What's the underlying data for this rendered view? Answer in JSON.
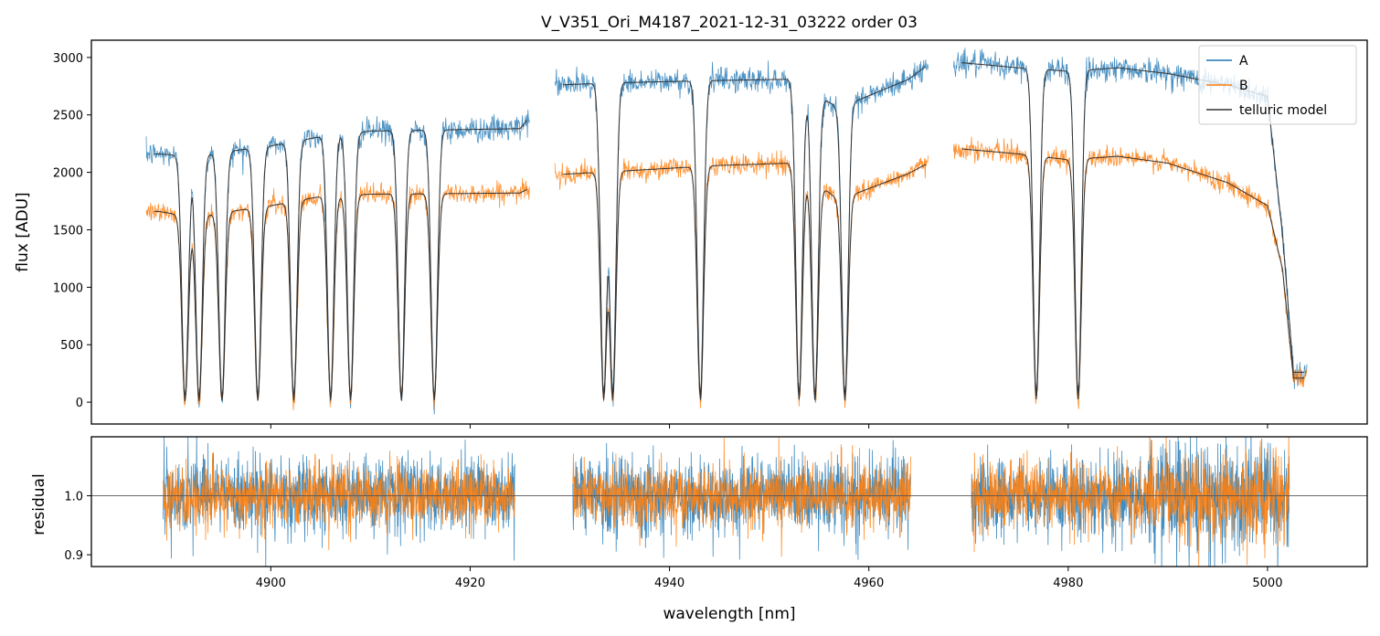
{
  "chart_data": [
    {
      "type": "line",
      "title": "V_V351_Ori_M4187_2021-12-31_03222  order 03",
      "xlabel": "",
      "ylabel": "flux [ADU]",
      "xlim": [
        4882,
        5010
      ],
      "ylim": [
        -190,
        3150
      ],
      "yticks": [
        0,
        500,
        1000,
        1500,
        2000,
        2500,
        3000
      ],
      "ytick_labels": [
        "0",
        "500",
        "1000",
        "1500",
        "2000",
        "2500",
        "3000"
      ],
      "xticks": [
        4900,
        4920,
        4940,
        4960,
        4980,
        5000
      ],
      "grid": false,
      "legend_position": "top-right",
      "segments_nm": [
        [
          4887.5,
          4926
        ],
        [
          4928.5,
          4966
        ],
        [
          4968.5,
          5004
        ]
      ],
      "continuum_knots": {
        "A": [
          [
            4888.8,
            2200
          ],
          [
            4892,
            2180
          ],
          [
            4900,
            2270
          ],
          [
            4905,
            2350
          ],
          [
            4910,
            2400
          ],
          [
            4925,
            2420
          ],
          [
            4928.6,
            2800
          ],
          [
            4935,
            2820
          ],
          [
            4945,
            2840
          ],
          [
            4952,
            2850
          ],
          [
            4957,
            2600
          ],
          [
            4964,
            2850
          ],
          [
            4965.5,
            2950
          ],
          [
            4968.6,
            3000
          ],
          [
            4975,
            2950
          ],
          [
            4980,
            2920
          ],
          [
            4985,
            2950
          ],
          [
            4990,
            2900
          ],
          [
            4996,
            2800
          ],
          [
            5000,
            2700
          ],
          [
            5001.5,
            1500
          ],
          [
            5002.6,
            300
          ]
        ],
        "B": [
          [
            4888.8,
            1700
          ],
          [
            4892,
            1650
          ],
          [
            4900,
            1750
          ],
          [
            4905,
            1830
          ],
          [
            4910,
            1850
          ],
          [
            4925,
            1860
          ],
          [
            4928.6,
            2020
          ],
          [
            4935,
            2050
          ],
          [
            4945,
            2100
          ],
          [
            4952,
            2120
          ],
          [
            4957,
            1800
          ],
          [
            4964,
            2030
          ],
          [
            4965.5,
            2100
          ],
          [
            4968.6,
            2250
          ],
          [
            4975,
            2200
          ],
          [
            4980,
            2150
          ],
          [
            4985,
            2180
          ],
          [
            4990,
            2120
          ],
          [
            4996,
            1950
          ],
          [
            5000,
            1750
          ],
          [
            5001.5,
            1200
          ],
          [
            5002.6,
            250
          ]
        ]
      },
      "absorption_lines_nm": [
        4891.4,
        4892.8,
        4895.1,
        4898.7,
        4902.3,
        4906.0,
        4908.0,
        4913.1,
        4916.4,
        4933.4,
        4934.3,
        4943.1,
        4953.0,
        4954.6,
        4957.6,
        4976.8,
        4981.0
      ],
      "series": [
        {
          "name": "A",
          "color": "#1f77b4"
        },
        {
          "name": "B",
          "color": "#ff7f0e"
        },
        {
          "name": "telluric model",
          "color": "#333333"
        }
      ]
    },
    {
      "type": "line",
      "title": "",
      "xlabel": "wavelength [nm]",
      "ylabel": "residual",
      "xlim": [
        4882,
        5010
      ],
      "ylim": [
        0.88,
        1.1
      ],
      "yticks": [
        0.9,
        1.0
      ],
      "ytick_labels": [
        "0.9",
        "1.0"
      ],
      "xticks": [
        4900,
        4920,
        4940,
        4960,
        4980,
        5000
      ],
      "xtick_labels": [
        "4900",
        "4920",
        "4940",
        "4960",
        "4980",
        "5000"
      ],
      "reference_line": 1.0,
      "segments_nm": [
        [
          4889.2,
          4924.5
        ],
        [
          4930.3,
          4964.2
        ],
        [
          4970.3,
          5002.2
        ]
      ],
      "series": [
        {
          "name": "A",
          "color": "#1f77b4"
        },
        {
          "name": "B",
          "color": "#ff7f0e"
        }
      ]
    }
  ]
}
